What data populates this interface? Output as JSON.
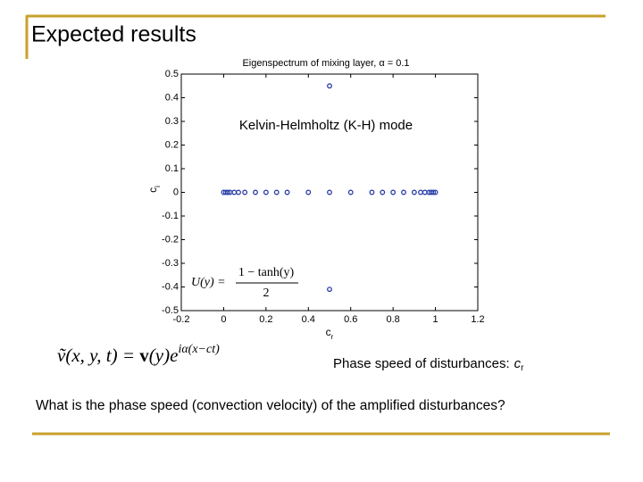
{
  "slide": {
    "title": "Expected results",
    "formula_mode": {
      "lhs": "ṽ(x, y, t) = ",
      "bold": "v",
      "rest": "(y)e",
      "exponent": "iα(x−ct)"
    },
    "caption": "Phase speed of disturbances:",
    "caption_symbol": "c",
    "caption_subscript": "r",
    "question": "What is the phase speed (convection velocity) of the amplified disturbances?"
  },
  "chart_data": {
    "type": "scatter",
    "title": "Eigenspectrum of mixing layer, α = 0.1",
    "xlabel": "c",
    "xlabel_subscript": "r",
    "ylabel": "c",
    "ylabel_subscript": "i",
    "annotation": "Kelvin-Helmholtz (K-H) mode",
    "profile_formula": {
      "lhs": "U(y) =",
      "numerator": "1 − tanh(y)",
      "denominator": "2"
    },
    "color": "#2b3fa6",
    "x": [
      0.5,
      0.5,
      0,
      0.01,
      0.02,
      0.03,
      0.05,
      0.07,
      0.1,
      0.15,
      0.2,
      0.25,
      0.3,
      0.4,
      0.5,
      0.6,
      0.7,
      0.75,
      0.8,
      0.85,
      0.9,
      0.93,
      0.95,
      0.97,
      0.98,
      0.99,
      1.0
    ],
    "values": [
      0.45,
      -0.41,
      0,
      0,
      0,
      0,
      0,
      0,
      0,
      0,
      0,
      0,
      0,
      0,
      0,
      0,
      0,
      0,
      0,
      0,
      0,
      0,
      0,
      0,
      0,
      0,
      0
    ],
    "xlim": [
      -0.2,
      1.2
    ],
    "xticks": [
      -0.2,
      0,
      0.2,
      0.4,
      0.6,
      0.8,
      1,
      1.2
    ],
    "ylim": [
      -0.5,
      0.5
    ],
    "yticks": [
      -0.5,
      -0.4,
      -0.3,
      -0.2,
      -0.1,
      0,
      0.1,
      0.2,
      0.3,
      0.4,
      0.5
    ],
    "grid": false
  }
}
